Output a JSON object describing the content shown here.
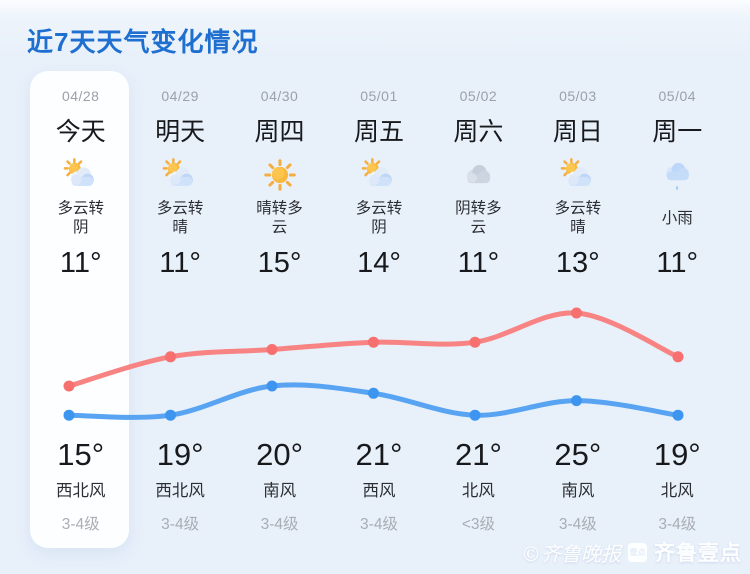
{
  "page": {
    "title": "近7天天气变化情况"
  },
  "days": [
    {
      "date": "04/28",
      "label": "今天",
      "icon": "sun-cloud",
      "desc": "多云转阴",
      "low": "11°",
      "high": "15°",
      "wind": "西北风",
      "level": "3-4级",
      "today": true
    },
    {
      "date": "04/29",
      "label": "明天",
      "icon": "sun-cloud",
      "desc": "多云转晴",
      "low": "11°",
      "high": "19°",
      "wind": "西北风",
      "level": "3-4级",
      "today": false
    },
    {
      "date": "04/30",
      "label": "周四",
      "icon": "sun",
      "desc": "晴转多云",
      "low": "15°",
      "high": "20°",
      "wind": "南风",
      "level": "3-4级",
      "today": false
    },
    {
      "date": "05/01",
      "label": "周五",
      "icon": "sun-cloud",
      "desc": "多云转阴",
      "low": "14°",
      "high": "21°",
      "wind": "西风",
      "level": "3-4级",
      "today": false
    },
    {
      "date": "05/02",
      "label": "周六",
      "icon": "cloud",
      "desc": "阴转多云",
      "low": "11°",
      "high": "21°",
      "wind": "北风",
      "level": "<3级",
      "today": false
    },
    {
      "date": "05/03",
      "label": "周日",
      "icon": "sun-cloud",
      "desc": "多云转晴",
      "low": "13°",
      "high": "25°",
      "wind": "南风",
      "level": "3-4级",
      "today": false
    },
    {
      "date": "05/04",
      "label": "周一",
      "icon": "rain",
      "desc": "小雨",
      "low": "11°",
      "high": "19°",
      "wind": "北风",
      "level": "3-4级",
      "today": false
    }
  ],
  "chart_data": {
    "type": "line",
    "categories": [
      "04/28",
      "04/29",
      "04/30",
      "05/01",
      "05/02",
      "05/03",
      "05/04"
    ],
    "series": [
      {
        "name": "high-temp",
        "color": "#f88383",
        "dot_color": "#f76f6f",
        "values": [
          15,
          19,
          20,
          21,
          21,
          25,
          19
        ]
      },
      {
        "name": "low-temp",
        "color": "#58a4f2",
        "dot_color": "#3e95ef",
        "values": [
          11,
          11,
          15,
          14,
          11,
          13,
          11
        ]
      }
    ],
    "title": "近7天天气变化情况",
    "xlabel": "",
    "ylabel": "",
    "ylim": [
      8,
      28
    ],
    "grid": false,
    "legend": "none"
  },
  "watermark": {
    "script_text": "©齐鲁晚报",
    "badge_text": "壹点",
    "bold_text": "齐鲁壹点"
  }
}
